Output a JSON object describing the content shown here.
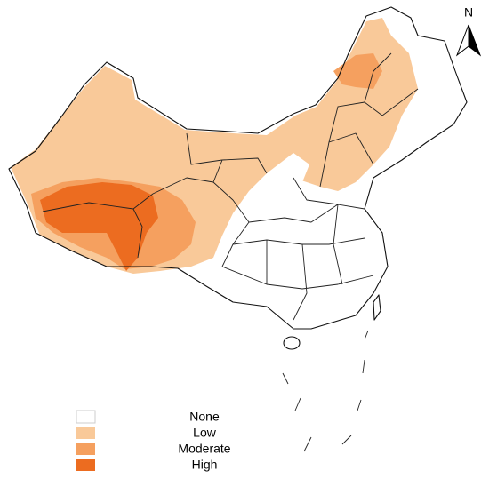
{
  "north_label": "N",
  "legend": {
    "items": [
      {
        "label": "None",
        "color": "#ffffff"
      },
      {
        "label": "Low",
        "color": "#f9c999"
      },
      {
        "label": "Moderate",
        "color": "#f5a05f"
      },
      {
        "label": "High",
        "color": "#ec6c20"
      }
    ]
  }
}
